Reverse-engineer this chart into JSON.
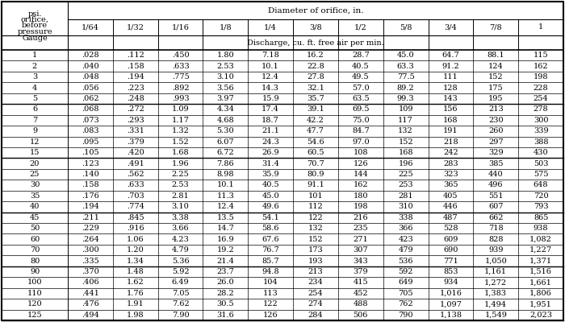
{
  "title_top": "Diameter of orifice, in.",
  "subtitle": "Discharge, cu. ft. free air per min.",
  "col_header_left": [
    "Gauge",
    "pressure",
    "before",
    "orifice,",
    "psi."
  ],
  "diameter_headers": [
    "1/64",
    "1/32",
    "1/16",
    "1/8",
    "1/4",
    "3/8",
    "1/2",
    "5/8",
    "3/4",
    "7/8",
    "1"
  ],
  "rows": [
    [
      1,
      0.028,
      0.112,
      0.45,
      1.8,
      7.18,
      16.2,
      28.7,
      45.0,
      64.7,
      88.1,
      115
    ],
    [
      2,
      0.04,
      0.158,
      0.633,
      2.53,
      10.1,
      22.8,
      40.5,
      63.3,
      91.2,
      124,
      162
    ],
    [
      3,
      0.048,
      0.194,
      0.775,
      3.1,
      12.4,
      27.8,
      49.5,
      77.5,
      111,
      152,
      198
    ],
    [
      4,
      0.056,
      0.223,
      0.892,
      3.56,
      14.3,
      32.1,
      57.0,
      89.2,
      128,
      175,
      228
    ],
    [
      5,
      0.062,
      0.248,
      0.993,
      3.97,
      15.9,
      35.7,
      63.5,
      99.3,
      143,
      195,
      254
    ],
    [
      6,
      0.068,
      0.272,
      1.09,
      4.34,
      17.4,
      39.1,
      69.5,
      109,
      156,
      213,
      278
    ],
    [
      7,
      0.073,
      0.293,
      1.17,
      4.68,
      18.7,
      42.2,
      75.0,
      117,
      168,
      230,
      300
    ],
    [
      9,
      0.083,
      0.331,
      1.32,
      5.3,
      21.1,
      47.7,
      84.7,
      132,
      191,
      260,
      339
    ],
    [
      12,
      0.095,
      0.379,
      1.52,
      6.07,
      24.3,
      54.6,
      97.0,
      152,
      218,
      297,
      388
    ],
    [
      15,
      0.105,
      0.42,
      1.68,
      6.72,
      26.9,
      60.5,
      108,
      168,
      242,
      329,
      430
    ],
    [
      20,
      0.123,
      0.491,
      1.96,
      7.86,
      31.4,
      70.7,
      126,
      196,
      283,
      385,
      503
    ],
    [
      25,
      0.14,
      0.562,
      2.25,
      8.98,
      35.9,
      80.9,
      144,
      225,
      323,
      440,
      575
    ],
    [
      30,
      0.158,
      0.633,
      2.53,
      10.1,
      40.5,
      91.1,
      162,
      253,
      365,
      496,
      648
    ],
    [
      35,
      0.176,
      0.703,
      2.81,
      11.3,
      45.0,
      101,
      180,
      281,
      405,
      551,
      720
    ],
    [
      40,
      0.194,
      0.774,
      3.1,
      12.4,
      49.6,
      112,
      198,
      310,
      446,
      607,
      793
    ],
    [
      45,
      0.211,
      0.845,
      3.38,
      13.5,
      54.1,
      122,
      216,
      338,
      487,
      662,
      865
    ],
    [
      50,
      0.229,
      0.916,
      3.66,
      14.7,
      58.6,
      132,
      235,
      366,
      528,
      718,
      938
    ],
    [
      60,
      0.264,
      1.06,
      4.23,
      16.9,
      67.6,
      152,
      271,
      423,
      609,
      828,
      1082
    ],
    [
      70,
      0.3,
      1.2,
      4.79,
      19.2,
      76.7,
      173,
      307,
      479,
      690,
      939,
      1227
    ],
    [
      80,
      0.335,
      1.34,
      5.36,
      21.4,
      85.7,
      193,
      343,
      536,
      771,
      1050,
      1371
    ],
    [
      90,
      0.37,
      1.48,
      5.92,
      23.7,
      94.8,
      213,
      379,
      592,
      853,
      1161,
      1516
    ],
    [
      100,
      0.406,
      1.62,
      6.49,
      26.0,
      104,
      234,
      415,
      649,
      934,
      1272,
      1661
    ],
    [
      110,
      0.441,
      1.76,
      7.05,
      28.2,
      113,
      254,
      452,
      705,
      1016,
      1383,
      1806
    ],
    [
      120,
      0.476,
      1.91,
      7.62,
      30.5,
      122,
      274,
      488,
      762,
      1097,
      1494,
      1951
    ],
    [
      125,
      0.494,
      1.98,
      7.9,
      31.6,
      126,
      284,
      506,
      790,
      1138,
      1549,
      2023
    ]
  ],
  "group_sep_after": [
    4,
    9,
    14,
    19,
    24
  ],
  "background_color": "#ffffff",
  "font_size": 7.0
}
